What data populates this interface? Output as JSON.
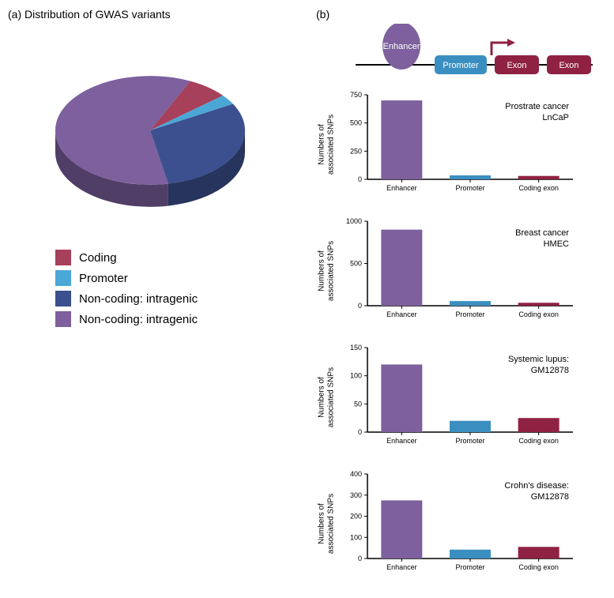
{
  "panel_a": {
    "label": "(a)",
    "title": "Distribution of GWAS variants",
    "pie": {
      "slices": [
        {
          "name": "Coding",
          "value": 7,
          "color": "#a7405a"
        },
        {
          "name": "Promoter",
          "value": 3,
          "color": "#4ba7d6"
        },
        {
          "name": "Non-coding: intragenic",
          "value": 30,
          "color": "#3c508f"
        },
        {
          "name": "Non-coding: intragenic",
          "value": 60,
          "color": "#7d609d"
        }
      ],
      "tilt_deg": 55,
      "depth": 28,
      "start_angle": -65
    },
    "legend": [
      {
        "label": "Coding",
        "color": "#a7405a"
      },
      {
        "label": "Promoter",
        "color": "#4ba7d6"
      },
      {
        "label": "Non-coding: intragenic",
        "color": "#3c508f"
      },
      {
        "label": "Non-coding: intragenic",
        "color": "#7d609d"
      }
    ]
  },
  "panel_b": {
    "label": "(b)",
    "diagram": {
      "enhancer_label": "Enhancer",
      "promoter_label": "Promoter",
      "exon_label": "Exon",
      "colors": {
        "enhancer": "#7d609d",
        "promoter": "#3b8fc0",
        "exon": "#8f2242",
        "line": "#000000",
        "arrow": "#8f2242"
      }
    },
    "ylabel": "Numbers of\nassociated SNPs",
    "categories": [
      "Enhancer",
      "Promoter",
      "Coding exon"
    ],
    "bar_colors": [
      "#7d609d",
      "#3b8fc0",
      "#8f2242"
    ],
    "axis_color": "#000000",
    "tick_fontsize": 9,
    "label_fontsize": 10,
    "title_fontsize": 11,
    "charts": [
      {
        "title_line1": "Prostrate cancer",
        "title_line2": "LnCaP",
        "ymax": 750,
        "ystep": 250,
        "values": [
          700,
          35,
          30
        ]
      },
      {
        "title_line1": "Breast cancer",
        "title_line2": "HMEC",
        "ymax": 1000,
        "ystep": 500,
        "values": [
          900,
          55,
          35
        ]
      },
      {
        "title_line1": "Systemic lupus:",
        "title_line2": "GM12878",
        "ymax": 150,
        "ystep": 50,
        "values": [
          120,
          20,
          25
        ]
      },
      {
        "title_line1": "Crohn's disease:",
        "title_line2": "GM12878",
        "ymax": 400,
        "ystep": 100,
        "values": [
          275,
          42,
          55
        ]
      }
    ]
  }
}
